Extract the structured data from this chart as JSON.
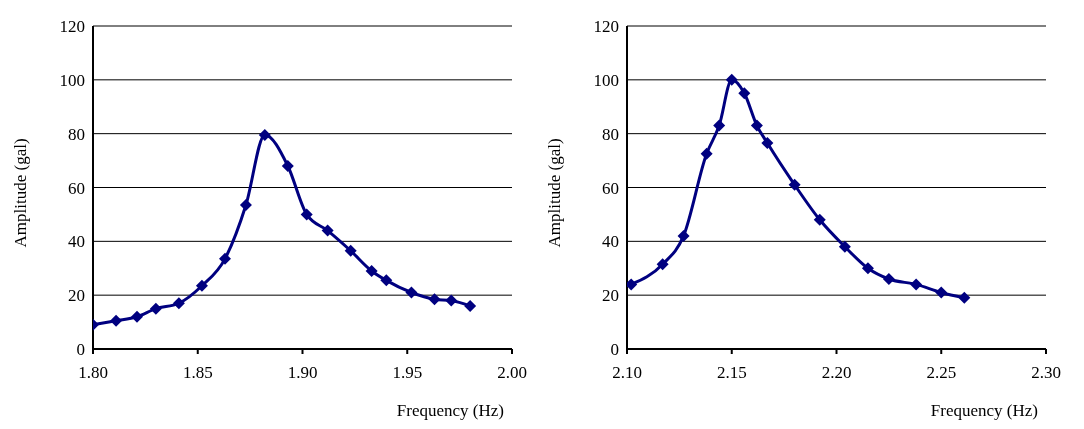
{
  "chart_data": [
    {
      "type": "line",
      "xlabel": "Frequency (Hz)",
      "ylabel": "Amplitude (gal)",
      "xlim": [
        1.8,
        2.0
      ],
      "xticks": [
        {
          "value": 1.8,
          "label": "1.80"
        },
        {
          "value": 1.85,
          "label": "1.85"
        },
        {
          "value": 1.9,
          "label": "1.90"
        },
        {
          "value": 1.95,
          "label": "1.95"
        },
        {
          "value": 2.0,
          "label": "2.00"
        }
      ],
      "ylim": [
        0,
        120
      ],
      "yticks": [
        0,
        20,
        40,
        60,
        80,
        100,
        120
      ],
      "grid": "y",
      "marker": "diamond",
      "line_style": "solid",
      "series": [
        {
          "color": "#000080",
          "x": [
            1.8,
            1.811,
            1.821,
            1.83,
            1.841,
            1.852,
            1.863,
            1.873,
            1.882,
            1.893,
            1.902,
            1.912,
            1.923,
            1.933,
            1.94,
            1.952,
            1.963,
            1.971,
            1.98
          ],
          "values": [
            9,
            10.5,
            12,
            15,
            17,
            23.5,
            33.5,
            53.5,
            79.5,
            68,
            50,
            44,
            36.5,
            29,
            25.5,
            21,
            18.5,
            18,
            16
          ]
        }
      ]
    },
    {
      "type": "line",
      "xlabel": "Frequency (Hz)",
      "ylabel": "Amplitude (gal)",
      "xlim": [
        2.1,
        2.3
      ],
      "xticks": [
        {
          "value": 2.1,
          "label": "2.10"
        },
        {
          "value": 2.15,
          "label": "2.15"
        },
        {
          "value": 2.2,
          "label": "2.20"
        },
        {
          "value": 2.25,
          "label": "2.25"
        },
        {
          "value": 2.3,
          "label": "2.30"
        }
      ],
      "ylim": [
        0,
        120
      ],
      "yticks": [
        0,
        20,
        40,
        60,
        80,
        100,
        120
      ],
      "grid": "y",
      "marker": "diamond",
      "line_style": "solid",
      "series": [
        {
          "color": "#000080",
          "x": [
            2.102,
            2.117,
            2.127,
            2.138,
            2.144,
            2.15,
            2.156,
            2.162,
            2.167,
            2.18,
            2.192,
            2.204,
            2.215,
            2.225,
            2.238,
            2.25,
            2.261
          ],
          "values": [
            24,
            31.5,
            42,
            72.5,
            83,
            100,
            95,
            83,
            76.5,
            61,
            48,
            38,
            30,
            26,
            24,
            21,
            19
          ]
        }
      ]
    }
  ]
}
